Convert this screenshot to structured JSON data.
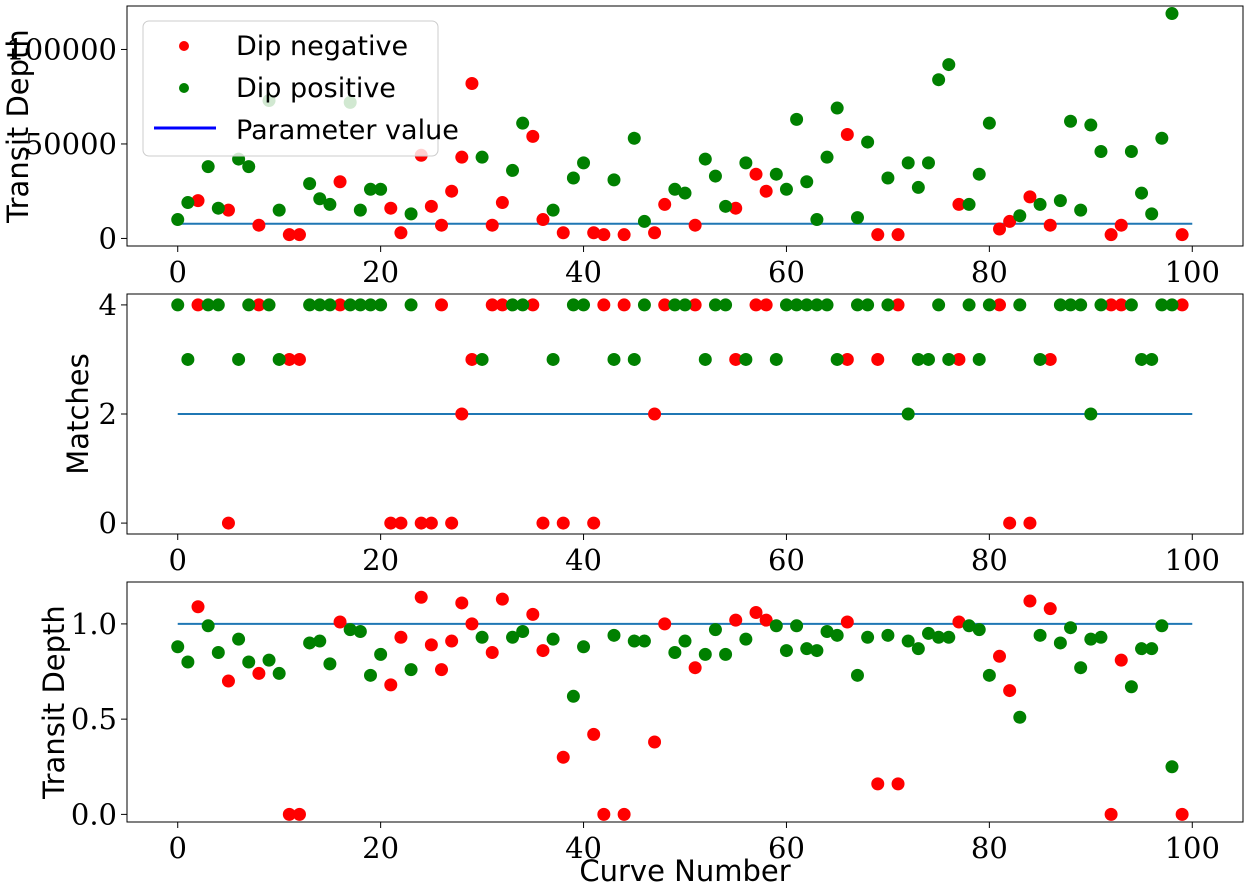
{
  "colors": {
    "negative": "#ff0000",
    "positive": "#008000",
    "parameter": "#1f77b4",
    "legend_parameter": "#0000ff"
  },
  "legend": {
    "negative": "Dip negative",
    "positive": "Dip positive",
    "parameter": "Parameter value"
  },
  "chart_data": [
    {
      "type": "scatter",
      "ylabel": "Transit Depth",
      "xlabel": "",
      "xlim": [
        -5,
        105
      ],
      "ylim": [
        -4000,
        123000
      ],
      "xticks": [
        0,
        20,
        40,
        60,
        80,
        100
      ],
      "yticks": [
        0,
        50000,
        100000
      ],
      "legend": "top-left",
      "parameter_value": 7800,
      "negative_points": [
        [
          2,
          20000
        ],
        [
          5,
          15000
        ],
        [
          8,
          7000
        ],
        [
          11,
          2000
        ],
        [
          12,
          2000
        ],
        [
          16,
          30000
        ],
        [
          21,
          16000
        ],
        [
          22,
          3000
        ],
        [
          24,
          44000
        ],
        [
          25,
          17000
        ],
        [
          26,
          7000
        ],
        [
          27,
          25000
        ],
        [
          28,
          43000
        ],
        [
          29,
          82000
        ],
        [
          31,
          7000
        ],
        [
          32,
          19000
        ],
        [
          35,
          54000
        ],
        [
          36,
          10000
        ],
        [
          38,
          3000
        ],
        [
          41,
          3000
        ],
        [
          42,
          2000
        ],
        [
          44,
          2000
        ],
        [
          47,
          3000
        ],
        [
          48,
          18000
        ],
        [
          51,
          7000
        ],
        [
          55,
          16000
        ],
        [
          57,
          34000
        ],
        [
          58,
          25000
        ],
        [
          66,
          55000
        ],
        [
          69,
          2000
        ],
        [
          71,
          2000
        ],
        [
          77,
          18000
        ],
        [
          81,
          5000
        ],
        [
          82,
          9000
        ],
        [
          84,
          22000
        ],
        [
          86,
          7000
        ],
        [
          92,
          2000
        ],
        [
          93,
          7000
        ],
        [
          99,
          2000
        ]
      ],
      "positive_points": [
        [
          0,
          10000
        ],
        [
          1,
          19000
        ],
        [
          3,
          38000
        ],
        [
          4,
          16000
        ],
        [
          6,
          42000
        ],
        [
          7,
          38000
        ],
        [
          9,
          73000
        ],
        [
          10,
          15000
        ],
        [
          13,
          29000
        ],
        [
          14,
          21000
        ],
        [
          15,
          18000
        ],
        [
          17,
          72000
        ],
        [
          18,
          15000
        ],
        [
          19,
          26000
        ],
        [
          20,
          26000
        ],
        [
          23,
          13000
        ],
        [
          30,
          43000
        ],
        [
          33,
          36000
        ],
        [
          34,
          61000
        ],
        [
          37,
          15000
        ],
        [
          39,
          32000
        ],
        [
          40,
          40000
        ],
        [
          43,
          31000
        ],
        [
          45,
          53000
        ],
        [
          46,
          9000
        ],
        [
          49,
          26000
        ],
        [
          50,
          24000
        ],
        [
          52,
          42000
        ],
        [
          53,
          33000
        ],
        [
          54,
          17000
        ],
        [
          56,
          40000
        ],
        [
          59,
          34000
        ],
        [
          60,
          26000
        ],
        [
          61,
          63000
        ],
        [
          62,
          30000
        ],
        [
          63,
          10000
        ],
        [
          64,
          43000
        ],
        [
          65,
          69000
        ],
        [
          67,
          11000
        ],
        [
          68,
          51000
        ],
        [
          70,
          32000
        ],
        [
          72,
          40000
        ],
        [
          73,
          27000
        ],
        [
          74,
          40000
        ],
        [
          75,
          84000
        ],
        [
          76,
          92000
        ],
        [
          78,
          18000
        ],
        [
          79,
          34000
        ],
        [
          80,
          61000
        ],
        [
          83,
          12000
        ],
        [
          85,
          18000
        ],
        [
          87,
          20000
        ],
        [
          88,
          62000
        ],
        [
          89,
          15000
        ],
        [
          90,
          60000
        ],
        [
          91,
          46000
        ],
        [
          94,
          46000
        ],
        [
          95,
          24000
        ],
        [
          96,
          13000
        ],
        [
          97,
          53000
        ],
        [
          98,
          119000
        ]
      ]
    },
    {
      "type": "scatter",
      "ylabel": "Matches",
      "xlabel": "",
      "xlim": [
        -5,
        105
      ],
      "ylim": [
        -0.2,
        4.2
      ],
      "xticks": [
        0,
        20,
        40,
        60,
        80,
        100
      ],
      "yticks": [
        0,
        2,
        4
      ],
      "parameter_value": 2,
      "negative_points": [
        [
          2,
          4
        ],
        [
          5,
          0
        ],
        [
          8,
          4
        ],
        [
          11,
          3
        ],
        [
          12,
          3
        ],
        [
          16,
          4
        ],
        [
          21,
          0
        ],
        [
          22,
          0
        ],
        [
          24,
          0
        ],
        [
          25,
          0
        ],
        [
          26,
          4
        ],
        [
          27,
          0
        ],
        [
          28,
          2
        ],
        [
          29,
          3
        ],
        [
          31,
          4
        ],
        [
          32,
          4
        ],
        [
          35,
          4
        ],
        [
          36,
          0
        ],
        [
          38,
          0
        ],
        [
          41,
          0
        ],
        [
          42,
          4
        ],
        [
          44,
          4
        ],
        [
          47,
          2
        ],
        [
          48,
          4
        ],
        [
          51,
          4
        ],
        [
          55,
          3
        ],
        [
          57,
          4
        ],
        [
          58,
          4
        ],
        [
          66,
          3
        ],
        [
          69,
          3
        ],
        [
          71,
          4
        ],
        [
          77,
          3
        ],
        [
          81,
          4
        ],
        [
          82,
          0
        ],
        [
          84,
          0
        ],
        [
          86,
          3
        ],
        [
          92,
          4
        ],
        [
          93,
          4
        ],
        [
          99,
          4
        ]
      ],
      "positive_points": [
        [
          0,
          4
        ],
        [
          1,
          3
        ],
        [
          3,
          4
        ],
        [
          4,
          4
        ],
        [
          6,
          3
        ],
        [
          7,
          4
        ],
        [
          9,
          4
        ],
        [
          10,
          3
        ],
        [
          13,
          4
        ],
        [
          14,
          4
        ],
        [
          15,
          4
        ],
        [
          17,
          4
        ],
        [
          18,
          4
        ],
        [
          19,
          4
        ],
        [
          20,
          4
        ],
        [
          23,
          4
        ],
        [
          30,
          3
        ],
        [
          33,
          4
        ],
        [
          34,
          4
        ],
        [
          37,
          3
        ],
        [
          39,
          4
        ],
        [
          40,
          4
        ],
        [
          43,
          3
        ],
        [
          45,
          3
        ],
        [
          46,
          4
        ],
        [
          49,
          4
        ],
        [
          50,
          4
        ],
        [
          52,
          3
        ],
        [
          53,
          4
        ],
        [
          54,
          4
        ],
        [
          56,
          3
        ],
        [
          59,
          3
        ],
        [
          60,
          4
        ],
        [
          61,
          4
        ],
        [
          62,
          4
        ],
        [
          63,
          4
        ],
        [
          64,
          4
        ],
        [
          65,
          3
        ],
        [
          67,
          4
        ],
        [
          68,
          4
        ],
        [
          70,
          4
        ],
        [
          72,
          2
        ],
        [
          73,
          3
        ],
        [
          74,
          3
        ],
        [
          75,
          4
        ],
        [
          76,
          3
        ],
        [
          78,
          4
        ],
        [
          79,
          3
        ],
        [
          80,
          4
        ],
        [
          83,
          4
        ],
        [
          85,
          3
        ],
        [
          87,
          4
        ],
        [
          88,
          4
        ],
        [
          89,
          4
        ],
        [
          90,
          2
        ],
        [
          91,
          4
        ],
        [
          94,
          4
        ],
        [
          95,
          3
        ],
        [
          96,
          3
        ],
        [
          97,
          4
        ],
        [
          98,
          4
        ]
      ]
    },
    {
      "type": "scatter",
      "ylabel": "Transit Depth",
      "xlabel": "Curve Number",
      "xlim": [
        -5,
        105
      ],
      "ylim": [
        -0.04,
        1.22
      ],
      "xticks": [
        0,
        20,
        40,
        60,
        80,
        100
      ],
      "yticks": [
        "0.0",
        "0.5",
        "1.0"
      ],
      "parameter_value": 1.0,
      "negative_points": [
        [
          2,
          1.09
        ],
        [
          5,
          0.7
        ],
        [
          8,
          0.74
        ],
        [
          11,
          0
        ],
        [
          12,
          0
        ],
        [
          16,
          1.01
        ],
        [
          21,
          0.68
        ],
        [
          22,
          0.93
        ],
        [
          24,
          1.14
        ],
        [
          25,
          0.89
        ],
        [
          26,
          0.76
        ],
        [
          27,
          0.91
        ],
        [
          28,
          1.11
        ],
        [
          29,
          1.0
        ],
        [
          31,
          0.85
        ],
        [
          32,
          1.13
        ],
        [
          35,
          1.05
        ],
        [
          36,
          0.86
        ],
        [
          38,
          0.3
        ],
        [
          41,
          0.42
        ],
        [
          42,
          0
        ],
        [
          44,
          0
        ],
        [
          47,
          0.38
        ],
        [
          48,
          1.0
        ],
        [
          51,
          0.77
        ],
        [
          55,
          1.02
        ],
        [
          57,
          1.06
        ],
        [
          58,
          1.02
        ],
        [
          66,
          1.01
        ],
        [
          69,
          0.16
        ],
        [
          71,
          0.16
        ],
        [
          77,
          1.01
        ],
        [
          81,
          0.83
        ],
        [
          82,
          0.65
        ],
        [
          84,
          1.12
        ],
        [
          86,
          1.08
        ],
        [
          92,
          0
        ],
        [
          93,
          0.81
        ],
        [
          99,
          0
        ]
      ],
      "positive_points": [
        [
          0,
          0.88
        ],
        [
          1,
          0.8
        ],
        [
          3,
          0.99
        ],
        [
          4,
          0.85
        ],
        [
          6,
          0.92
        ],
        [
          7,
          0.8
        ],
        [
          9,
          0.81
        ],
        [
          10,
          0.74
        ],
        [
          13,
          0.9
        ],
        [
          14,
          0.91
        ],
        [
          15,
          0.79
        ],
        [
          17,
          0.97
        ],
        [
          18,
          0.96
        ],
        [
          19,
          0.73
        ],
        [
          20,
          0.84
        ],
        [
          23,
          0.76
        ],
        [
          30,
          0.93
        ],
        [
          33,
          0.93
        ],
        [
          34,
          0.96
        ],
        [
          37,
          0.92
        ],
        [
          39,
          0.62
        ],
        [
          40,
          0.88
        ],
        [
          43,
          0.94
        ],
        [
          45,
          0.91
        ],
        [
          46,
          0.91
        ],
        [
          49,
          0.85
        ],
        [
          50,
          0.91
        ],
        [
          52,
          0.84
        ],
        [
          53,
          0.97
        ],
        [
          54,
          0.84
        ],
        [
          56,
          0.92
        ],
        [
          59,
          0.99
        ],
        [
          60,
          0.86
        ],
        [
          61,
          0.99
        ],
        [
          62,
          0.87
        ],
        [
          63,
          0.86
        ],
        [
          64,
          0.96
        ],
        [
          65,
          0.94
        ],
        [
          67,
          0.73
        ],
        [
          68,
          0.93
        ],
        [
          70,
          0.94
        ],
        [
          72,
          0.91
        ],
        [
          73,
          0.87
        ],
        [
          74,
          0.95
        ],
        [
          75,
          0.93
        ],
        [
          76,
          0.93
        ],
        [
          78,
          0.99
        ],
        [
          79,
          0.97
        ],
        [
          80,
          0.73
        ],
        [
          83,
          0.51
        ],
        [
          85,
          0.94
        ],
        [
          87,
          0.9
        ],
        [
          88,
          0.98
        ],
        [
          89,
          0.77
        ],
        [
          90,
          0.92
        ],
        [
          91,
          0.93
        ],
        [
          94,
          0.67
        ],
        [
          95,
          0.87
        ],
        [
          96,
          0.87
        ],
        [
          97,
          0.99
        ],
        [
          98,
          0.25
        ]
      ]
    }
  ]
}
